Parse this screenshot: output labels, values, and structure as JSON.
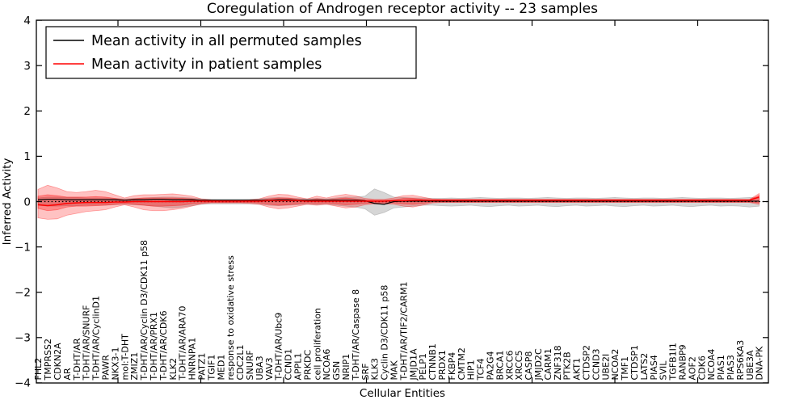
{
  "title": "Coregulation of Androgen receptor activity -- 23 samples",
  "axes": {
    "xlabel": "Cellular Entities",
    "ylabel": "Inferred Activity",
    "ytick_labels": [
      "4",
      "3",
      "2",
      "1",
      "0",
      "−1",
      "−2",
      "−3",
      "−4"
    ],
    "ytick_values": [
      4,
      3,
      2,
      1,
      0,
      -1,
      -2,
      -3,
      -4
    ]
  },
  "legend": {
    "entries": [
      {
        "label": "Mean activity in all permuted samples",
        "color": "#000000"
      },
      {
        "label": "Mean activity in patient samples",
        "color": "#ff0000"
      }
    ]
  },
  "colors": {
    "patient_line": "#ff0000",
    "permuted_line": "#000000",
    "patient_band": "#ff0000",
    "permuted_band": "#999999",
    "axis": "#000000"
  },
  "chart_data": {
    "type": "line",
    "title": "Coregulation of Androgen receptor activity -- 23 samples",
    "xlabel": "Cellular Entities",
    "ylabel": "Inferred Activity",
    "ylim": [
      -4,
      4
    ],
    "yticks": [
      -4,
      -3,
      -2,
      -1,
      0,
      1,
      2,
      3,
      4
    ],
    "grid": false,
    "legend_position": "upper left",
    "zero_line": {
      "style": "dotted",
      "color": "#000000",
      "y": 0
    },
    "categories": [
      "FHL2",
      "TMPRSS2",
      "CDKN2A",
      "AR",
      "T-DHT/AR",
      "T-DHT/AR/SNURF",
      "T-DHT/AR/CyclinD1",
      "PAWR",
      "NKX3-1",
      "mol:T-DHT",
      "ZMIZ1",
      "T-DHT/AR/Cyclin D3/CDK11 p58",
      "T-DHT/AR/PRX1",
      "T-DHT/AR/CDK6",
      "KLK2",
      "T-DHT/AR/ARA70",
      "HNRNPA1",
      "PATZ1",
      "TGIF1",
      "MED1",
      "response to oxidative stress",
      "CDC2L1",
      "SNURF",
      "UBA3",
      "VAV3",
      "T-DHT/AR/Ubc9",
      "CCND1",
      "APPL1",
      "PRKDC",
      "cell proliferation",
      "NCOA6",
      "GSN",
      "NRIP1",
      "T-DHT/AR/Caspase 8",
      "SRF",
      "KLK3",
      "Cyclin D3/CDK11 p58",
      "MAK",
      "T-DHT/AR/TIF2/CARM1",
      "JMJD1A",
      "PELP1",
      "CTNNB1",
      "PRDX1",
      "FKBP4",
      "CMTM2",
      "HIP1",
      "TCF4",
      "PA2G4",
      "BRCA1",
      "XRCC6",
      "XRCC5",
      "CASP8",
      "JMJD2C",
      "CARM1",
      "ZNF318",
      "PTK2B",
      "AKT1",
      "CTDSP2",
      "CCND3",
      "UBE2I",
      "NCOA2",
      "TMF1",
      "CTDSP1",
      "LATS2",
      "PIAS4",
      "SVIL",
      "TGFB1I1",
      "RANBP9",
      "AOF2",
      "CDK6",
      "NCOA4",
      "PIAS1",
      "PIAS3",
      "RPS6KA3",
      "UBE3A",
      "DNA-PK"
    ],
    "series": [
      {
        "name": "Mean activity in all permuted samples",
        "color": "#000000",
        "values": [
          0.04,
          0.05,
          0.05,
          0.04,
          0.04,
          0.04,
          0.04,
          0.04,
          0.04,
          0.03,
          0.04,
          0.04,
          0.05,
          0.05,
          0.04,
          0.04,
          0.04,
          0.03,
          0.03,
          0.03,
          0.03,
          0.03,
          0.03,
          0.03,
          0.03,
          0.04,
          0.04,
          0.03,
          0.03,
          0.03,
          0.03,
          0.03,
          0.03,
          0.03,
          0.02,
          -0.04,
          -0.06,
          0.0,
          0.01,
          0.01,
          0.01,
          0.01,
          0.01,
          0.01,
          0.01,
          0.01,
          0.01,
          0.01,
          0.01,
          0.01,
          0.01,
          0.01,
          0.01,
          0.01,
          0.01,
          0.01,
          0.01,
          0.01,
          0.01,
          0.01,
          0.01,
          0.01,
          0.01,
          0.01,
          0.01,
          0.01,
          0.01,
          0.01,
          0.01,
          0.01,
          0.01,
          0.01,
          0.01,
          0.01,
          0.01,
          0.01
        ]
      },
      {
        "name": "Mean activity in patient samples",
        "color": "#ff0000",
        "values": [
          -0.07,
          -0.09,
          -0.07,
          -0.04,
          -0.03,
          -0.02,
          -0.02,
          -0.02,
          -0.01,
          -0.01,
          0.0,
          0.0,
          0.0,
          0.0,
          0.0,
          0.0,
          0.01,
          0.01,
          0.01,
          0.01,
          0.01,
          0.01,
          0.01,
          0.01,
          0.02,
          0.02,
          0.02,
          0.02,
          0.01,
          0.01,
          0.01,
          0.01,
          0.01,
          0.01,
          0.01,
          0.01,
          0.01,
          0.02,
          0.02,
          0.03,
          0.03,
          0.03,
          0.03,
          0.03,
          0.03,
          0.03,
          0.03,
          0.03,
          0.03,
          0.03,
          0.03,
          0.03,
          0.03,
          0.03,
          0.03,
          0.03,
          0.03,
          0.03,
          0.03,
          0.03,
          0.03,
          0.03,
          0.03,
          0.03,
          0.03,
          0.03,
          0.03,
          0.03,
          0.03,
          0.03,
          0.03,
          0.03,
          0.03,
          0.03,
          0.03,
          0.1
        ]
      }
    ],
    "bands": [
      {
        "name": "permuted-samples-band",
        "color": "#999999",
        "opacity": 0.4,
        "upper": [
          0.08,
          0.1,
          0.1,
          0.09,
          0.09,
          0.08,
          0.08,
          0.08,
          0.07,
          0.06,
          0.07,
          0.08,
          0.09,
          0.1,
          0.1,
          0.09,
          0.08,
          0.06,
          0.05,
          0.05,
          0.05,
          0.05,
          0.05,
          0.06,
          0.08,
          0.09,
          0.08,
          0.07,
          0.06,
          0.07,
          0.06,
          0.08,
          0.1,
          0.1,
          0.12,
          0.28,
          0.2,
          0.1,
          0.09,
          0.08,
          0.08,
          0.07,
          0.07,
          0.08,
          0.07,
          0.08,
          0.09,
          0.08,
          0.07,
          0.08,
          0.08,
          0.07,
          0.08,
          0.09,
          0.08,
          0.07,
          0.08,
          0.08,
          0.07,
          0.08,
          0.09,
          0.08,
          0.07,
          0.08,
          0.08,
          0.07,
          0.08,
          0.09,
          0.08,
          0.07,
          0.08,
          0.08,
          0.07,
          0.08,
          0.09,
          0.08
        ],
        "lower": [
          -0.08,
          -0.1,
          -0.1,
          -0.09,
          -0.09,
          -0.08,
          -0.08,
          -0.08,
          -0.07,
          -0.06,
          -0.07,
          -0.08,
          -0.1,
          -0.12,
          -0.14,
          -0.12,
          -0.09,
          -0.06,
          -0.05,
          -0.05,
          -0.05,
          -0.05,
          -0.05,
          -0.06,
          -0.08,
          -0.09,
          -0.08,
          -0.07,
          -0.06,
          -0.07,
          -0.06,
          -0.08,
          -0.1,
          -0.12,
          -0.16,
          -0.3,
          -0.24,
          -0.14,
          -0.12,
          -0.1,
          -0.08,
          -0.08,
          -0.09,
          -0.1,
          -0.09,
          -0.08,
          -0.1,
          -0.11,
          -0.09,
          -0.08,
          -0.1,
          -0.09,
          -0.08,
          -0.1,
          -0.11,
          -0.09,
          -0.08,
          -0.1,
          -0.09,
          -0.08,
          -0.1,
          -0.11,
          -0.09,
          -0.08,
          -0.1,
          -0.09,
          -0.08,
          -0.1,
          -0.11,
          -0.09,
          -0.08,
          -0.1,
          -0.09,
          -0.1,
          -0.12,
          -0.1
        ]
      },
      {
        "name": "patient-samples-band-outer",
        "color": "#ff0000",
        "opacity": 0.24,
        "upper": [
          0.27,
          0.36,
          0.3,
          0.22,
          0.2,
          0.22,
          0.25,
          0.22,
          0.15,
          0.08,
          0.13,
          0.15,
          0.15,
          0.16,
          0.17,
          0.15,
          0.12,
          0.06,
          0.04,
          0.03,
          0.03,
          0.03,
          0.04,
          0.06,
          0.12,
          0.16,
          0.15,
          0.1,
          0.06,
          0.12,
          0.08,
          0.13,
          0.16,
          0.13,
          0.07,
          0.05,
          0.05,
          0.08,
          0.13,
          0.14,
          0.1,
          0.06,
          0.05,
          0.05,
          0.05,
          0.05,
          0.05,
          0.05,
          0.05,
          0.05,
          0.05,
          0.05,
          0.05,
          0.05,
          0.05,
          0.05,
          0.05,
          0.05,
          0.05,
          0.05,
          0.05,
          0.05,
          0.05,
          0.05,
          0.05,
          0.05,
          0.05,
          0.05,
          0.05,
          0.05,
          0.05,
          0.05,
          0.05,
          0.05,
          0.05,
          0.18
        ],
        "lower": [
          -0.36,
          -0.39,
          -0.38,
          -0.3,
          -0.26,
          -0.22,
          -0.2,
          -0.18,
          -0.12,
          -0.07,
          -0.12,
          -0.18,
          -0.2,
          -0.2,
          -0.18,
          -0.15,
          -0.1,
          -0.05,
          -0.03,
          -0.03,
          -0.03,
          -0.03,
          -0.04,
          -0.06,
          -0.12,
          -0.16,
          -0.14,
          -0.1,
          -0.06,
          -0.08,
          -0.06,
          -0.1,
          -0.14,
          -0.12,
          -0.07,
          -0.05,
          -0.05,
          -0.06,
          -0.1,
          -0.12,
          -0.08,
          -0.03,
          -0.02,
          -0.02,
          -0.02,
          -0.02,
          -0.02,
          -0.02,
          -0.02,
          -0.02,
          -0.02,
          -0.02,
          -0.02,
          -0.02,
          -0.02,
          -0.02,
          -0.02,
          -0.02,
          -0.02,
          -0.02,
          -0.02,
          -0.02,
          -0.02,
          -0.02,
          -0.02,
          -0.02,
          -0.02,
          -0.02,
          -0.02,
          -0.02,
          -0.02,
          -0.02,
          -0.02,
          -0.02,
          -0.02,
          -0.06
        ]
      },
      {
        "name": "patient-samples-band-inner",
        "color": "#ff0000",
        "opacity": 0.3,
        "upper": [
          0.12,
          0.15,
          0.13,
          0.1,
          0.1,
          0.1,
          0.11,
          0.1,
          0.07,
          0.04,
          0.06,
          0.08,
          0.08,
          0.08,
          0.08,
          0.07,
          0.06,
          0.03,
          0.02,
          0.02,
          0.02,
          0.02,
          0.02,
          0.03,
          0.06,
          0.08,
          0.08,
          0.05,
          0.03,
          0.06,
          0.04,
          0.06,
          0.08,
          0.06,
          0.04,
          0.03,
          0.03,
          0.04,
          0.07,
          0.07,
          0.05,
          0.04,
          0.04,
          0.04,
          0.04,
          0.04,
          0.04,
          0.04,
          0.04,
          0.04,
          0.04,
          0.04,
          0.04,
          0.04,
          0.04,
          0.04,
          0.04,
          0.04,
          0.04,
          0.04,
          0.04,
          0.04,
          0.04,
          0.04,
          0.04,
          0.04,
          0.04,
          0.04,
          0.04,
          0.04,
          0.04,
          0.04,
          0.04,
          0.04,
          0.04,
          0.14
        ],
        "lower": [
          -0.15,
          -0.2,
          -0.18,
          -0.12,
          -0.1,
          -0.1,
          -0.09,
          -0.08,
          -0.06,
          -0.04,
          -0.06,
          -0.08,
          -0.1,
          -0.1,
          -0.09,
          -0.08,
          -0.05,
          -0.03,
          -0.02,
          -0.02,
          -0.02,
          -0.02,
          -0.02,
          -0.03,
          -0.06,
          -0.08,
          -0.07,
          -0.05,
          -0.03,
          -0.04,
          -0.03,
          -0.05,
          -0.07,
          -0.06,
          -0.04,
          -0.03,
          -0.03,
          -0.03,
          -0.05,
          -0.06,
          -0.04,
          -0.01,
          -0.01,
          -0.01,
          -0.01,
          -0.01,
          -0.01,
          -0.01,
          -0.01,
          -0.01,
          -0.01,
          -0.01,
          -0.01,
          -0.01,
          -0.01,
          -0.01,
          -0.01,
          -0.01,
          -0.01,
          -0.01,
          -0.01,
          -0.01,
          -0.01,
          -0.01,
          -0.01,
          -0.01,
          -0.01,
          -0.01,
          -0.01,
          -0.01,
          -0.01,
          -0.01,
          -0.01,
          -0.01,
          -0.01,
          -0.03
        ]
      }
    ]
  }
}
